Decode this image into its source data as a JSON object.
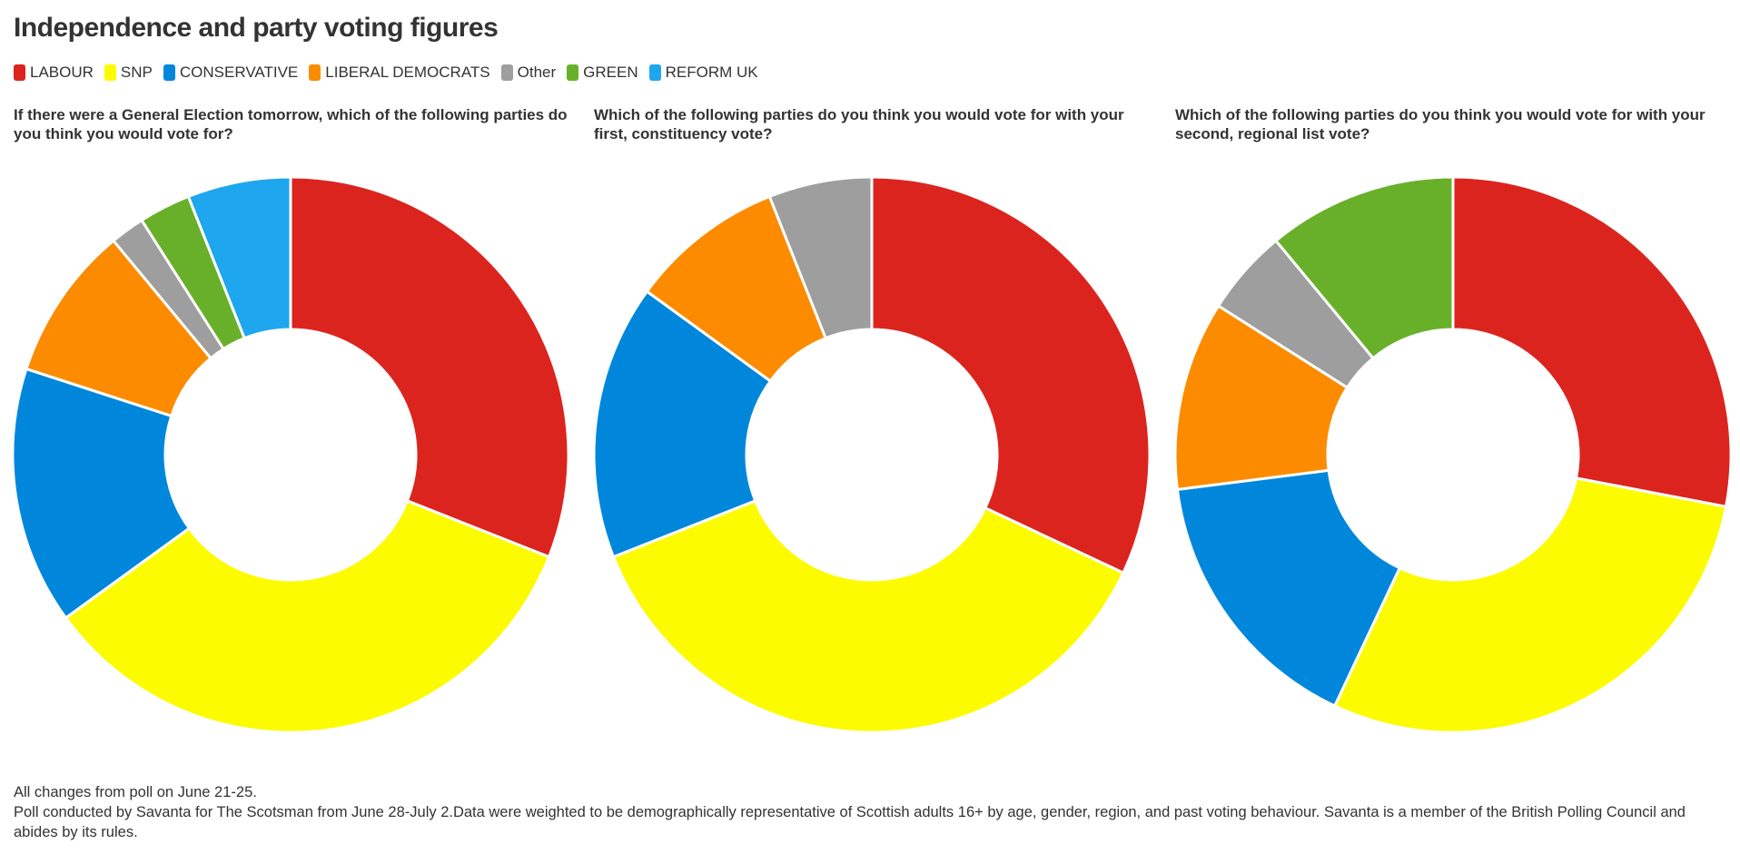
{
  "title": "Independence and party voting figures",
  "legend": [
    {
      "label": "LABOUR",
      "color": "#dc241f"
    },
    {
      "label": "SNP",
      "color": "#fdfb00"
    },
    {
      "label": "CONSERVATIVE",
      "color": "#0087dc"
    },
    {
      "label": "LIBERAL DEMOCRATS",
      "color": "#fd8b00"
    },
    {
      "label": "Other",
      "color": "#9e9e9e"
    },
    {
      "label": "GREEN",
      "color": "#69b02a"
    },
    {
      "label": "REFORM UK",
      "color": "#1ea7ee"
    }
  ],
  "chart_data": [
    {
      "type": "pie",
      "title": "If there were a General Election tomorrow, which of the following parties do you think you would vote for?",
      "categories": [
        "LABOUR",
        "SNP",
        "CONSERVATIVE",
        "LIBERAL DEMOCRATS",
        "Other",
        "GREEN",
        "REFORM UK"
      ],
      "values": [
        31,
        34,
        15,
        9,
        2,
        3,
        6
      ]
    },
    {
      "type": "pie",
      "title": "Which of the following parties do you think you would vote for with your first, constituency vote?",
      "categories": [
        "LABOUR",
        "SNP",
        "CONSERVATIVE",
        "LIBERAL DEMOCRATS",
        "Other"
      ],
      "values": [
        32,
        37,
        16,
        9,
        6
      ]
    },
    {
      "type": "pie",
      "title": "Which of the following parties do you think you would vote for with your second, regional list vote?",
      "categories": [
        "LABOUR",
        "SNP",
        "CONSERVATIVE",
        "LIBERAL DEMOCRATS",
        "Other",
        "GREEN"
      ],
      "values": [
        28,
        29,
        16,
        11,
        5,
        11
      ]
    }
  ],
  "footer": {
    "line1": "All changes from poll on June 21-25.",
    "line2": "Poll conducted by Savanta for The Scotsman from June 28-July 2.Data were weighted to be demographically representative of Scottish adults 16+ by age, gender, region, and past voting behaviour. Savanta is a member of the British Polling Council and abides by its rules."
  }
}
